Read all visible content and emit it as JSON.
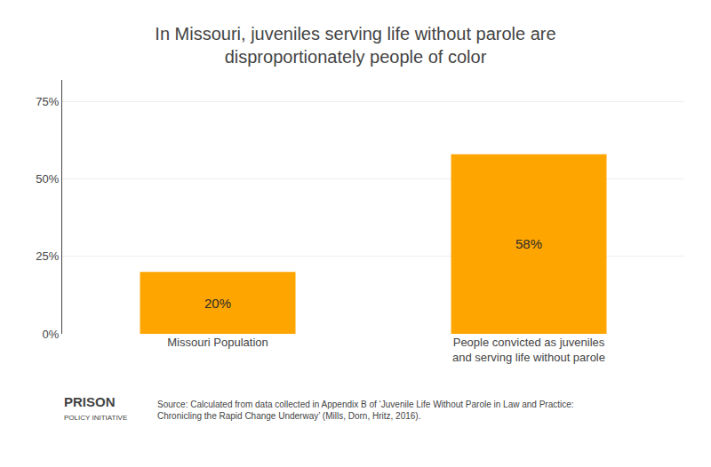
{
  "chart_data": {
    "type": "bar",
    "title": "In Missouri, juveniles serving life without parole are\ndisproportionately people of color",
    "categories": [
      "Missouri Population",
      "People convicted as juveniles\nand serving life without parole"
    ],
    "values": [
      20,
      58
    ],
    "value_labels": [
      "20%",
      "58%"
    ],
    "data_labels": true,
    "color": "#FFA500",
    "ylim": [
      0,
      82
    ],
    "yticks": [
      {
        "value": 0,
        "label": "0%"
      },
      {
        "value": 25,
        "label": "25%"
      },
      {
        "value": 50,
        "label": "50%"
      },
      {
        "value": 75,
        "label": "75%"
      }
    ],
    "grid": true,
    "annotations": [
      "Source: Calculated from data collected in Appendix B of ‘Juvenile Life Without Parole in Law and Practice:\nChronicling the Rapid Change Underway’ (Mills, Dorn, Hritz, 2016).",
      "PRISON",
      "POLICY INITIATIVE"
    ]
  }
}
